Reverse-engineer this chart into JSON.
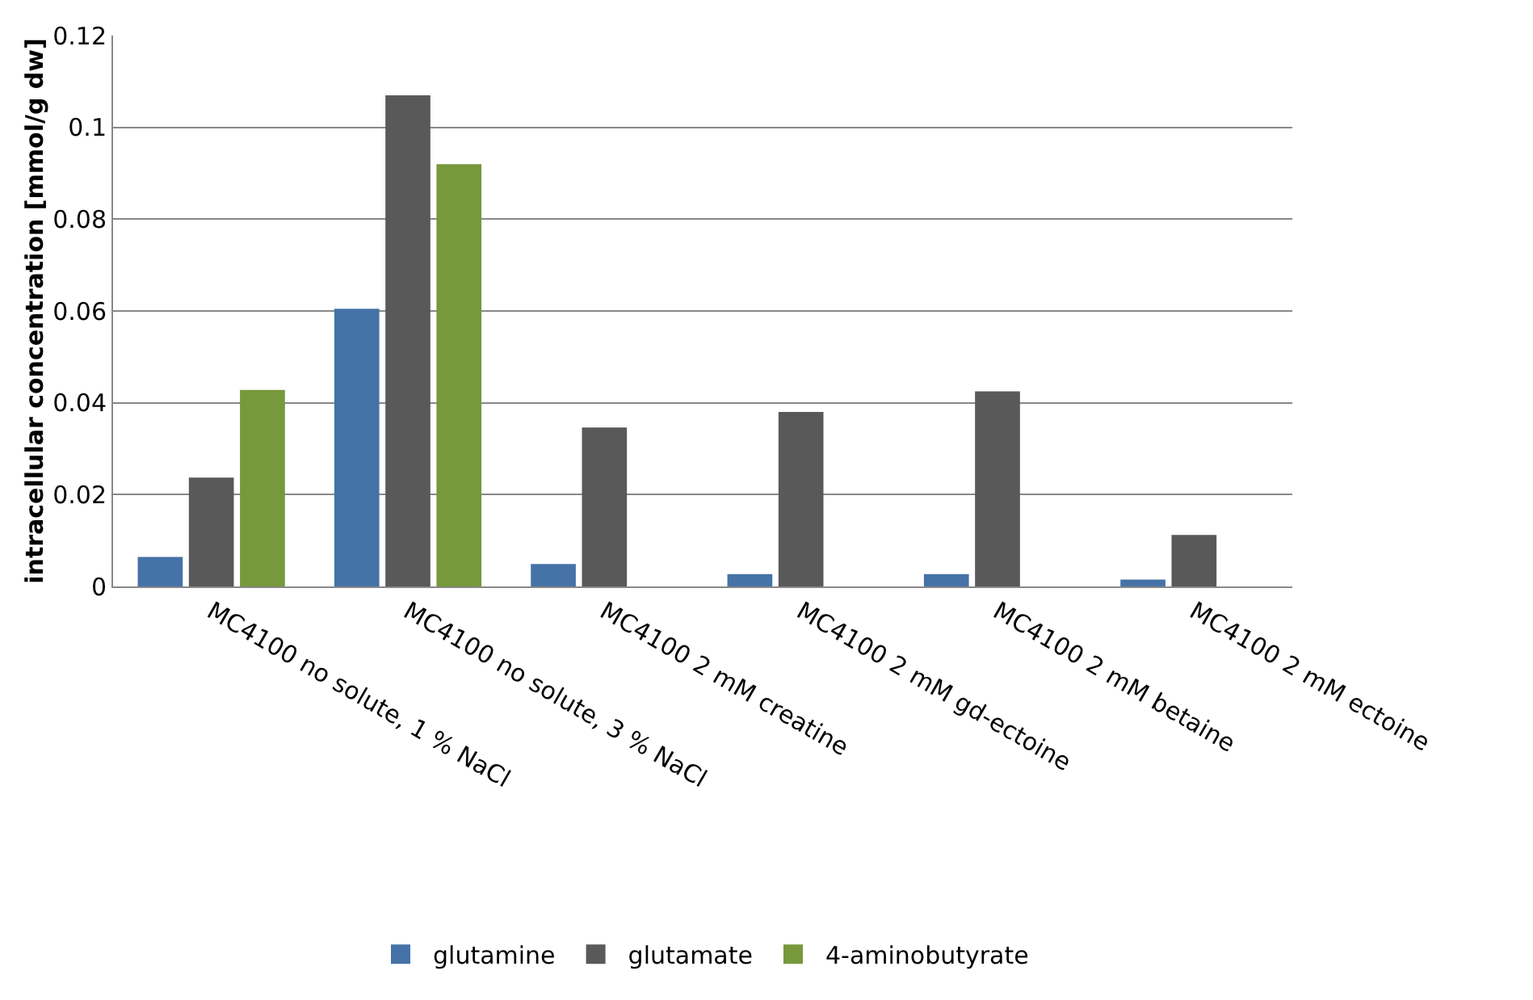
{
  "chart_data": {
    "type": "bar",
    "ylabel": "intracellular concentration [mmol/g dw]",
    "categories": [
      "MC4100 no solute, 1 % NaCl",
      "MC4100 no solute, 3 % NaCl",
      "MC4100 2 mM creatine",
      "MC4100 2 mM gd-ectoine",
      "MC4100 2 mM betaine",
      "MC4100 2 mM ectoine"
    ],
    "series": [
      {
        "name": "glutamine",
        "color": "#4572a7",
        "values": [
          0.0064,
          0.0605,
          0.0049,
          0.0027,
          0.0027,
          0.0015
        ]
      },
      {
        "name": "glutamate",
        "color": "#595959",
        "values": [
          0.0237,
          0.107,
          0.0346,
          0.038,
          0.0425,
          0.0112
        ]
      },
      {
        "name": "4-aminobutyrate",
        "color": "#77983b",
        "values": [
          0.0428,
          0.092,
          null,
          null,
          null,
          null
        ]
      }
    ],
    "ylim": [
      0,
      0.12
    ],
    "yticks": [
      0,
      0.02,
      0.04,
      0.06,
      0.08,
      {
        "value": 0.1,
        "label": "0.1"
      },
      0.12
    ],
    "grid": "y",
    "legend": "bottom"
  }
}
